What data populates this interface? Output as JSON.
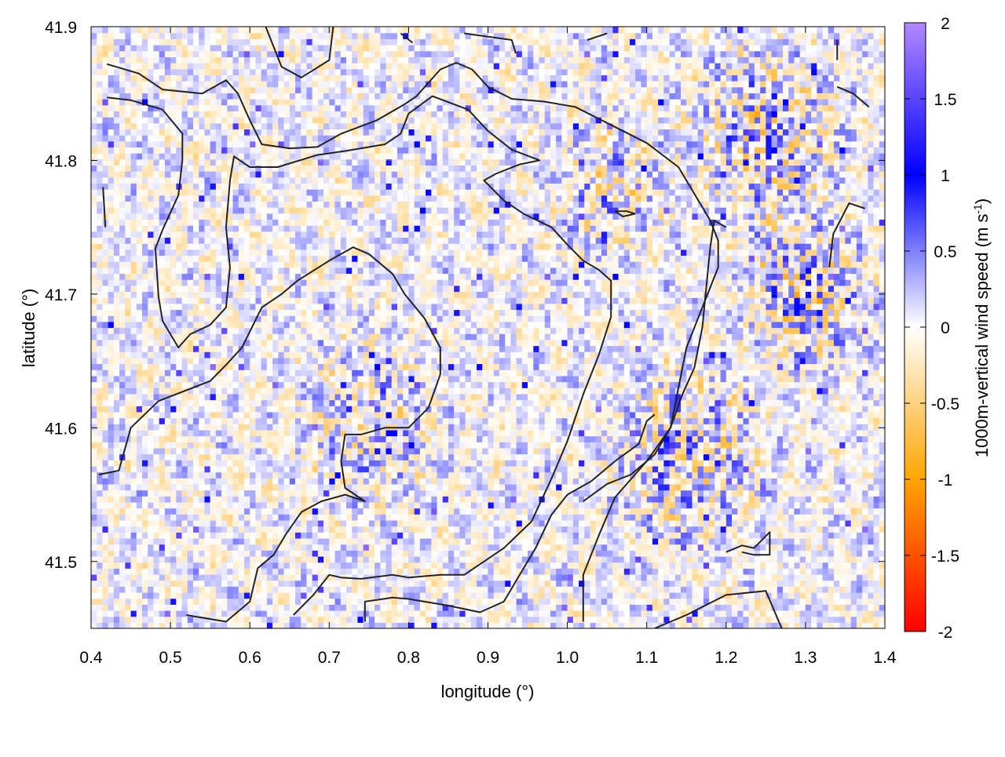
{
  "chart_data": {
    "type": "heatmap",
    "title": "",
    "xlabel": "longitude (°)",
    "ylabel": "latitude (°)",
    "xlim": [
      0.4,
      1.4
    ],
    "ylim": [
      41.45,
      41.9
    ],
    "xticks": [
      0.4,
      0.5,
      0.6,
      0.7,
      0.8,
      0.9,
      1.0,
      1.1,
      1.2,
      1.3,
      1.4
    ],
    "xtick_labels": [
      "0.4",
      "0.5",
      "0.6",
      "0.7",
      "0.8",
      "0.9",
      "1.0",
      "1.1",
      "1.2",
      "1.3",
      "1.4"
    ],
    "yticks": [
      41.5,
      41.6,
      41.7,
      41.8,
      41.9
    ],
    "ytick_labels": [
      "41.5",
      "41.6",
      "41.7",
      "41.8",
      "41.9"
    ],
    "grid": true,
    "colorbar": {
      "label_main": "1000m-vertical wind speed (m s",
      "label_sup": "-1",
      "label_end": ")",
      "range": [
        -2,
        2
      ],
      "ticks": [
        2,
        1.5,
        1,
        0.5,
        0,
        -0.5,
        -1,
        -1.5,
        -2
      ],
      "tick_labels": [
        "2",
        "1.5",
        "1",
        "0.5",
        "0",
        "-0.5",
        "-1",
        "-1.5",
        "-2"
      ],
      "color_stops": [
        {
          "value": -2,
          "color": "#ff0000"
        },
        {
          "value": -1,
          "color": "#ffa500"
        },
        {
          "value": 0,
          "color": "#ffffff"
        },
        {
          "value": 1,
          "color": "#0000ff"
        },
        {
          "value": 2,
          "color": "#b388ff"
        }
      ]
    },
    "field_description_regions": [
      {
        "lon": 1.15,
        "lat": 41.58,
        "radius": 0.12,
        "mean": 0.8
      },
      {
        "lon": 1.3,
        "lat": 41.7,
        "radius": 0.1,
        "mean": 1.1
      },
      {
        "lon": 1.25,
        "lat": 41.82,
        "radius": 0.12,
        "mean": 0.9
      },
      {
        "lon": 1.05,
        "lat": 41.78,
        "radius": 0.1,
        "mean": 0.6
      },
      {
        "lon": 0.75,
        "lat": 41.6,
        "radius": 0.12,
        "mean": 0.5
      }
    ],
    "contours": [
      [
        [
          0.42,
          41.872
        ],
        [
          0.46,
          41.865
        ],
        [
          0.49,
          41.853
        ],
        [
          0.54,
          41.85
        ],
        [
          0.57,
          41.86
        ],
        [
          0.585,
          41.85
        ],
        [
          0.6,
          41.83
        ],
        [
          0.615,
          41.812
        ],
        [
          0.65,
          41.809
        ],
        [
          0.685,
          41.81
        ],
        [
          0.715,
          41.82
        ],
        [
          0.76,
          41.83
        ],
        [
          0.795,
          41.842
        ],
        [
          0.81,
          41.848
        ],
        [
          0.84,
          41.868
        ],
        [
          0.86,
          41.873
        ],
        [
          0.88,
          41.868
        ],
        [
          0.9,
          41.855
        ],
        [
          0.93,
          41.846
        ],
        [
          0.97,
          41.844
        ],
        [
          1.01,
          41.84
        ],
        [
          1.06,
          41.825
        ],
        [
          1.1,
          41.813
        ],
        [
          1.14,
          41.795
        ],
        [
          1.16,
          41.775
        ],
        [
          1.18,
          41.755
        ],
        [
          1.19,
          41.74
        ],
        [
          1.19,
          41.72
        ],
        [
          1.17,
          41.69
        ],
        [
          1.15,
          41.66
        ],
        [
          1.14,
          41.63
        ],
        [
          1.13,
          41.6
        ],
        [
          1.1,
          41.575
        ],
        [
          1.06,
          41.548
        ],
        [
          1.04,
          41.52
        ],
        [
          1.02,
          41.49
        ],
        [
          1.02,
          41.455
        ]
      ],
      [
        [
          0.42,
          41.847
        ],
        [
          0.45,
          41.845
        ],
        [
          0.49,
          41.838
        ],
        [
          0.515,
          41.82
        ],
        [
          0.515,
          41.8
        ],
        [
          0.51,
          41.774
        ],
        [
          0.49,
          41.748
        ],
        [
          0.481,
          41.734
        ],
        [
          0.485,
          41.698
        ],
        [
          0.49,
          41.68
        ],
        [
          0.51,
          41.66
        ],
        [
          0.525,
          41.67
        ],
        [
          0.55,
          41.677
        ],
        [
          0.57,
          41.69
        ],
        [
          0.575,
          41.72
        ],
        [
          0.57,
          41.75
        ],
        [
          0.575,
          41.785
        ],
        [
          0.58,
          41.803
        ],
        [
          0.6,
          41.795
        ],
        [
          0.635,
          41.795
        ],
        [
          0.685,
          41.804
        ],
        [
          0.72,
          41.807
        ],
        [
          0.77,
          41.812
        ],
        [
          0.79,
          41.82
        ],
        [
          0.8,
          41.835
        ],
        [
          0.83,
          41.848
        ],
        [
          0.875,
          41.838
        ],
        [
          0.9,
          41.822
        ],
        [
          0.93,
          41.808
        ],
        [
          0.965,
          41.8
        ],
        [
          0.94,
          41.797
        ],
        [
          0.91,
          41.79
        ],
        [
          0.895,
          41.785
        ],
        [
          0.92,
          41.77
        ],
        [
          0.945,
          41.76
        ],
        [
          0.98,
          41.75
        ],
        [
          1.0,
          41.737
        ],
        [
          1.02,
          41.725
        ],
        [
          1.04,
          41.718
        ],
        [
          1.055,
          41.71
        ],
        [
          1.055,
          41.683
        ],
        [
          1.04,
          41.655
        ],
        [
          1.02,
          41.625
        ],
        [
          1.0,
          41.59
        ],
        [
          0.98,
          41.562
        ],
        [
          0.955,
          41.53
        ],
        [
          0.92,
          41.51
        ],
        [
          0.87,
          41.49
        ],
        [
          0.84,
          41.49
        ],
        [
          0.8,
          41.488
        ],
        [
          0.78,
          41.49
        ],
        [
          0.74,
          41.487
        ],
        [
          0.715,
          41.488
        ],
        [
          0.7,
          41.49
        ],
        [
          0.68,
          41.475
        ],
        [
          0.655,
          41.46
        ]
      ],
      [
        [
          0.41,
          41.565
        ],
        [
          0.435,
          41.568
        ],
        [
          0.45,
          41.6
        ],
        [
          0.485,
          41.62
        ],
        [
          0.55,
          41.635
        ],
        [
          0.57,
          41.647
        ],
        [
          0.59,
          41.66
        ],
        [
          0.615,
          41.69
        ],
        [
          0.64,
          41.7
        ],
        [
          0.66,
          41.71
        ],
        [
          0.7,
          41.725
        ],
        [
          0.73,
          41.735
        ],
        [
          0.75,
          41.73
        ],
        [
          0.78,
          41.715
        ],
        [
          0.795,
          41.7
        ],
        [
          0.82,
          41.682
        ],
        [
          0.84,
          41.66
        ],
        [
          0.84,
          41.64
        ],
        [
          0.825,
          41.615
        ],
        [
          0.8,
          41.6
        ],
        [
          0.77,
          41.6
        ],
        [
          0.74,
          41.595
        ],
        [
          0.72,
          41.595
        ],
        [
          0.715,
          41.575
        ],
        [
          0.72,
          41.555
        ],
        [
          0.745,
          41.545
        ],
        [
          0.72,
          41.55
        ],
        [
          0.69,
          41.545
        ],
        [
          0.665,
          41.537
        ],
        [
          0.645,
          41.52
        ],
        [
          0.63,
          41.505
        ],
        [
          0.61,
          41.495
        ],
        [
          0.6,
          41.47
        ],
        [
          0.57,
          41.455
        ],
        [
          0.52,
          41.46
        ]
      ],
      [
        [
          0.745,
          41.455
        ],
        [
          0.745,
          41.47
        ],
        [
          0.78,
          41.473
        ],
        [
          0.8,
          41.472
        ],
        [
          0.85,
          41.467
        ],
        [
          0.89,
          41.462
        ],
        [
          0.92,
          41.47
        ],
        [
          0.94,
          41.49
        ],
        [
          0.96,
          41.51
        ],
        [
          0.98,
          41.535
        ],
        [
          1.0,
          41.55
        ],
        [
          1.03,
          41.56
        ],
        [
          1.06,
          41.575
        ],
        [
          1.09,
          41.588
        ],
        [
          1.1,
          41.605
        ],
        [
          1.11,
          41.61
        ]
      ],
      [
        [
          1.02,
          41.545
        ],
        [
          1.05,
          41.558
        ],
        [
          1.08,
          41.565
        ],
        [
          1.11,
          41.58
        ],
        [
          1.13,
          41.6
        ],
        [
          1.145,
          41.625
        ],
        [
          1.16,
          41.645
        ],
        [
          1.17,
          41.675
        ],
        [
          1.175,
          41.705
        ],
        [
          1.18,
          41.735
        ],
        [
          1.185,
          41.755
        ],
        [
          1.2,
          41.75
        ]
      ],
      [
        [
          1.11,
          41.45
        ],
        [
          1.15,
          41.46
        ],
        [
          1.2,
          41.475
        ],
        [
          1.25,
          41.478
        ],
        [
          1.27,
          41.45
        ]
      ],
      [
        [
          1.2,
          41.507
        ],
        [
          1.22,
          41.512
        ],
        [
          1.235,
          41.51
        ],
        [
          1.255,
          41.522
        ],
        [
          1.255,
          41.505
        ],
        [
          1.235,
          41.505
        ],
        [
          1.22,
          41.507
        ]
      ],
      [
        [
          1.06,
          41.762
        ],
        [
          1.075,
          41.762
        ],
        [
          1.085,
          41.76
        ],
        [
          1.07,
          41.758
        ],
        [
          1.06,
          41.762
        ]
      ],
      [
        [
          1.33,
          41.72
        ],
        [
          1.335,
          41.745
        ],
        [
          1.355,
          41.768
        ],
        [
          1.375,
          41.764
        ]
      ],
      [
        [
          0.415,
          41.78
        ],
        [
          0.418,
          41.75
        ]
      ],
      [
        [
          0.62,
          41.9
        ],
        [
          0.64,
          41.87
        ],
        [
          0.665,
          41.862
        ],
        [
          0.7,
          41.875
        ],
        [
          0.705,
          41.9
        ]
      ],
      [
        [
          0.79,
          41.895
        ],
        [
          0.805,
          41.888
        ]
      ],
      [
        [
          0.87,
          41.895
        ],
        [
          0.93,
          41.89
        ],
        [
          0.935,
          41.88
        ]
      ],
      [
        [
          1.025,
          41.89
        ],
        [
          1.05,
          41.895
        ]
      ],
      [
        [
          1.34,
          41.855
        ],
        [
          1.36,
          41.85
        ],
        [
          1.38,
          41.84
        ]
      ],
      [
        [
          1.34,
          41.89
        ],
        [
          1.34,
          41.875
        ]
      ]
    ]
  }
}
